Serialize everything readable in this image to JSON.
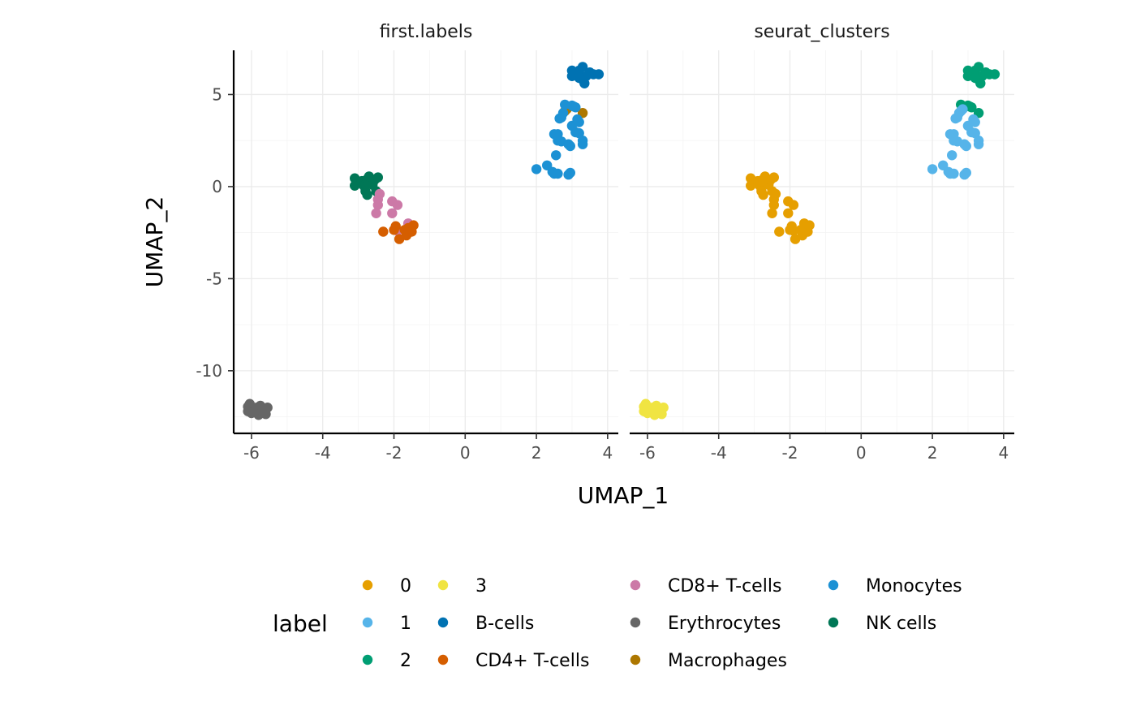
{
  "chart_data": {
    "type": "scatter",
    "xlabel": "UMAP_1",
    "ylabel": "UMAP_2",
    "xlim": [
      -6.5,
      4.3
    ],
    "ylim": [
      -13.4,
      7.4
    ],
    "x_ticks": [
      -6,
      -4,
      -2,
      0,
      2,
      4
    ],
    "y_ticks": [
      5,
      0,
      -5,
      -10
    ],
    "grid": true,
    "legend": {
      "title": "label",
      "position": "bottom",
      "entries": [
        {
          "key": "0",
          "color": "#E69F00"
        },
        {
          "key": "1",
          "color": "#56B4E9"
        },
        {
          "key": "2",
          "color": "#009E73"
        },
        {
          "key": "3",
          "color": "#F0E442"
        },
        {
          "key": "B-cells",
          "color": "#0072B2"
        },
        {
          "key": "CD4+ T-cells",
          "color": "#D55E00"
        },
        {
          "key": "CD8+ T-cells",
          "color": "#CC79A7"
        },
        {
          "key": "Erythrocytes",
          "color": "#666666"
        },
        {
          "key": "Macrophages",
          "color": "#AD7700"
        },
        {
          "key": "Monocytes",
          "color": "#1C91D4"
        },
        {
          "key": "NK cells",
          "color": "#007756"
        }
      ]
    },
    "panels": [
      {
        "title": "first.labels",
        "groups": [
          {
            "label": "B-cells",
            "points": [
              [
                3.0,
                6.3
              ],
              [
                3.1,
                6.1
              ],
              [
                3.2,
                6.3
              ],
              [
                3.3,
                6.5
              ],
              [
                3.3,
                5.8
              ],
              [
                3.35,
                5.6
              ],
              [
                3.4,
                6.0
              ],
              [
                3.5,
                6.2
              ],
              [
                3.6,
                6.1
              ],
              [
                3.75,
                6.1
              ],
              [
                3.0,
                6.0
              ],
              [
                3.2,
                5.9
              ]
            ]
          },
          {
            "label": "Macrophages",
            "points": [
              [
                2.8,
                4.1
              ],
              [
                3.3,
                4.0
              ],
              [
                2.85,
                4.2
              ]
            ]
          },
          {
            "label": "Monocytes",
            "points": [
              [
                2.0,
                0.95
              ],
              [
                2.3,
                1.15
              ],
              [
                2.45,
                0.8
              ],
              [
                2.5,
                0.7
              ],
              [
                2.6,
                0.7
              ],
              [
                2.55,
                1.7
              ],
              [
                2.5,
                2.85
              ],
              [
                2.6,
                2.85
              ],
              [
                2.6,
                2.5
              ],
              [
                2.7,
                2.45
              ],
              [
                2.65,
                3.7
              ],
              [
                2.75,
                4.0
              ],
              [
                2.8,
                4.45
              ],
              [
                2.9,
                2.3
              ],
              [
                2.95,
                2.2
              ],
              [
                3.0,
                3.3
              ],
              [
                3.0,
                4.4
              ],
              [
                3.1,
                4.3
              ],
              [
                3.1,
                2.95
              ],
              [
                3.15,
                3.65
              ],
              [
                3.2,
                2.9
              ],
              [
                3.2,
                3.5
              ],
              [
                3.3,
                2.5
              ],
              [
                3.3,
                2.3
              ],
              [
                2.95,
                0.75
              ],
              [
                2.9,
                0.65
              ],
              [
                3.05,
                4.35
              ],
              [
                2.7,
                3.75
              ]
            ]
          },
          {
            "label": "NK cells",
            "points": [
              [
                -3.1,
                0.45
              ],
              [
                -3.1,
                0.05
              ],
              [
                -2.9,
                0.3
              ],
              [
                -2.85,
                0.05
              ],
              [
                -2.75,
                0.4
              ],
              [
                -2.7,
                0.55
              ],
              [
                -2.75,
                -0.45
              ],
              [
                -2.6,
                0.1
              ],
              [
                -2.55,
                0.35
              ],
              [
                -2.45,
                0.5
              ],
              [
                -2.5,
                -0.25
              ],
              [
                -2.8,
                -0.25
              ]
            ]
          },
          {
            "label": "CD8+ T-cells",
            "points": [
              [
                -2.4,
                -0.4
              ],
              [
                -2.45,
                -0.7
              ],
              [
                -2.45,
                -1.0
              ],
              [
                -2.5,
                -1.45
              ],
              [
                -2.05,
                -0.8
              ],
              [
                -2.05,
                -1.45
              ],
              [
                -1.9,
                -1.0
              ],
              [
                -1.9,
                -2.4
              ],
              [
                -1.6,
                -2.0
              ]
            ]
          },
          {
            "label": "CD4+ T-cells",
            "points": [
              [
                -2.3,
                -2.45
              ],
              [
                -2.0,
                -2.35
              ],
              [
                -1.95,
                -2.15
              ],
              [
                -1.85,
                -2.85
              ],
              [
                -1.7,
                -2.35
              ],
              [
                -1.65,
                -2.65
              ],
              [
                -1.6,
                -2.25
              ],
              [
                -1.5,
                -2.45
              ],
              [
                -1.45,
                -2.1
              ]
            ]
          },
          {
            "label": "Erythrocytes",
            "points": [
              [
                -6.1,
                -11.95
              ],
              [
                -6.1,
                -12.2
              ],
              [
                -6.05,
                -11.8
              ],
              [
                -6.0,
                -12.3
              ],
              [
                -5.9,
                -12.1
              ],
              [
                -5.85,
                -12.0
              ],
              [
                -5.8,
                -12.4
              ],
              [
                -5.75,
                -11.9
              ],
              [
                -5.7,
                -12.2
              ],
              [
                -5.6,
                -12.35
              ],
              [
                -5.55,
                -12.0
              ],
              [
                -5.95,
                -12.25
              ]
            ]
          }
        ]
      },
      {
        "title": "seurat_clusters",
        "groups": [
          {
            "label": "2",
            "points": [
              [
                3.0,
                6.3
              ],
              [
                3.1,
                6.1
              ],
              [
                3.2,
                6.3
              ],
              [
                3.3,
                6.5
              ],
              [
                3.3,
                5.8
              ],
              [
                3.35,
                5.6
              ],
              [
                3.4,
                6.0
              ],
              [
                3.5,
                6.2
              ],
              [
                3.6,
                6.1
              ],
              [
                3.75,
                6.1
              ],
              [
                3.0,
                6.0
              ],
              [
                3.2,
                5.9
              ],
              [
                2.8,
                4.45
              ],
              [
                3.0,
                4.4
              ],
              [
                3.1,
                4.3
              ],
              [
                3.3,
                4.0
              ],
              [
                3.05,
                4.35
              ]
            ]
          },
          {
            "label": "1",
            "points": [
              [
                2.0,
                0.95
              ],
              [
                2.3,
                1.15
              ],
              [
                2.45,
                0.8
              ],
              [
                2.5,
                0.7
              ],
              [
                2.6,
                0.7
              ],
              [
                2.55,
                1.7
              ],
              [
                2.5,
                2.85
              ],
              [
                2.6,
                2.85
              ],
              [
                2.6,
                2.5
              ],
              [
                2.7,
                2.45
              ],
              [
                2.65,
                3.7
              ],
              [
                2.75,
                4.0
              ],
              [
                2.8,
                4.1
              ],
              [
                2.9,
                2.3
              ],
              [
                2.95,
                2.2
              ],
              [
                3.0,
                3.3
              ],
              [
                3.1,
                2.95
              ],
              [
                3.15,
                3.65
              ],
              [
                3.2,
                2.9
              ],
              [
                3.2,
                3.5
              ],
              [
                3.3,
                2.5
              ],
              [
                3.3,
                2.3
              ],
              [
                2.95,
                0.75
              ],
              [
                2.9,
                0.65
              ],
              [
                2.85,
                4.2
              ],
              [
                2.7,
                3.75
              ]
            ]
          },
          {
            "label": "0",
            "points": [
              [
                -3.1,
                0.45
              ],
              [
                -3.1,
                0.05
              ],
              [
                -2.9,
                0.3
              ],
              [
                -2.85,
                0.05
              ],
              [
                -2.75,
                0.4
              ],
              [
                -2.7,
                0.55
              ],
              [
                -2.75,
                -0.45
              ],
              [
                -2.6,
                0.1
              ],
              [
                -2.55,
                0.35
              ],
              [
                -2.45,
                0.5
              ],
              [
                -2.5,
                -0.25
              ],
              [
                -2.8,
                -0.25
              ],
              [
                -2.4,
                -0.4
              ],
              [
                -2.45,
                -0.7
              ],
              [
                -2.45,
                -1.0
              ],
              [
                -2.5,
                -1.45
              ],
              [
                -2.05,
                -0.8
              ],
              [
                -2.05,
                -1.45
              ],
              [
                -1.9,
                -1.0
              ],
              [
                -1.9,
                -2.4
              ],
              [
                -1.6,
                -2.0
              ],
              [
                -2.3,
                -2.45
              ],
              [
                -2.0,
                -2.35
              ],
              [
                -1.95,
                -2.15
              ],
              [
                -1.85,
                -2.85
              ],
              [
                -1.7,
                -2.35
              ],
              [
                -1.65,
                -2.65
              ],
              [
                -1.6,
                -2.25
              ],
              [
                -1.5,
                -2.45
              ],
              [
                -1.45,
                -2.1
              ]
            ]
          },
          {
            "label": "3",
            "points": [
              [
                -6.1,
                -11.95
              ],
              [
                -6.1,
                -12.2
              ],
              [
                -6.05,
                -11.8
              ],
              [
                -6.0,
                -12.3
              ],
              [
                -5.9,
                -12.1
              ],
              [
                -5.85,
                -12.0
              ],
              [
                -5.8,
                -12.4
              ],
              [
                -5.75,
                -11.9
              ],
              [
                -5.7,
                -12.2
              ],
              [
                -5.6,
                -12.35
              ],
              [
                -5.55,
                -12.0
              ],
              [
                -5.95,
                -12.25
              ]
            ]
          }
        ]
      }
    ]
  }
}
